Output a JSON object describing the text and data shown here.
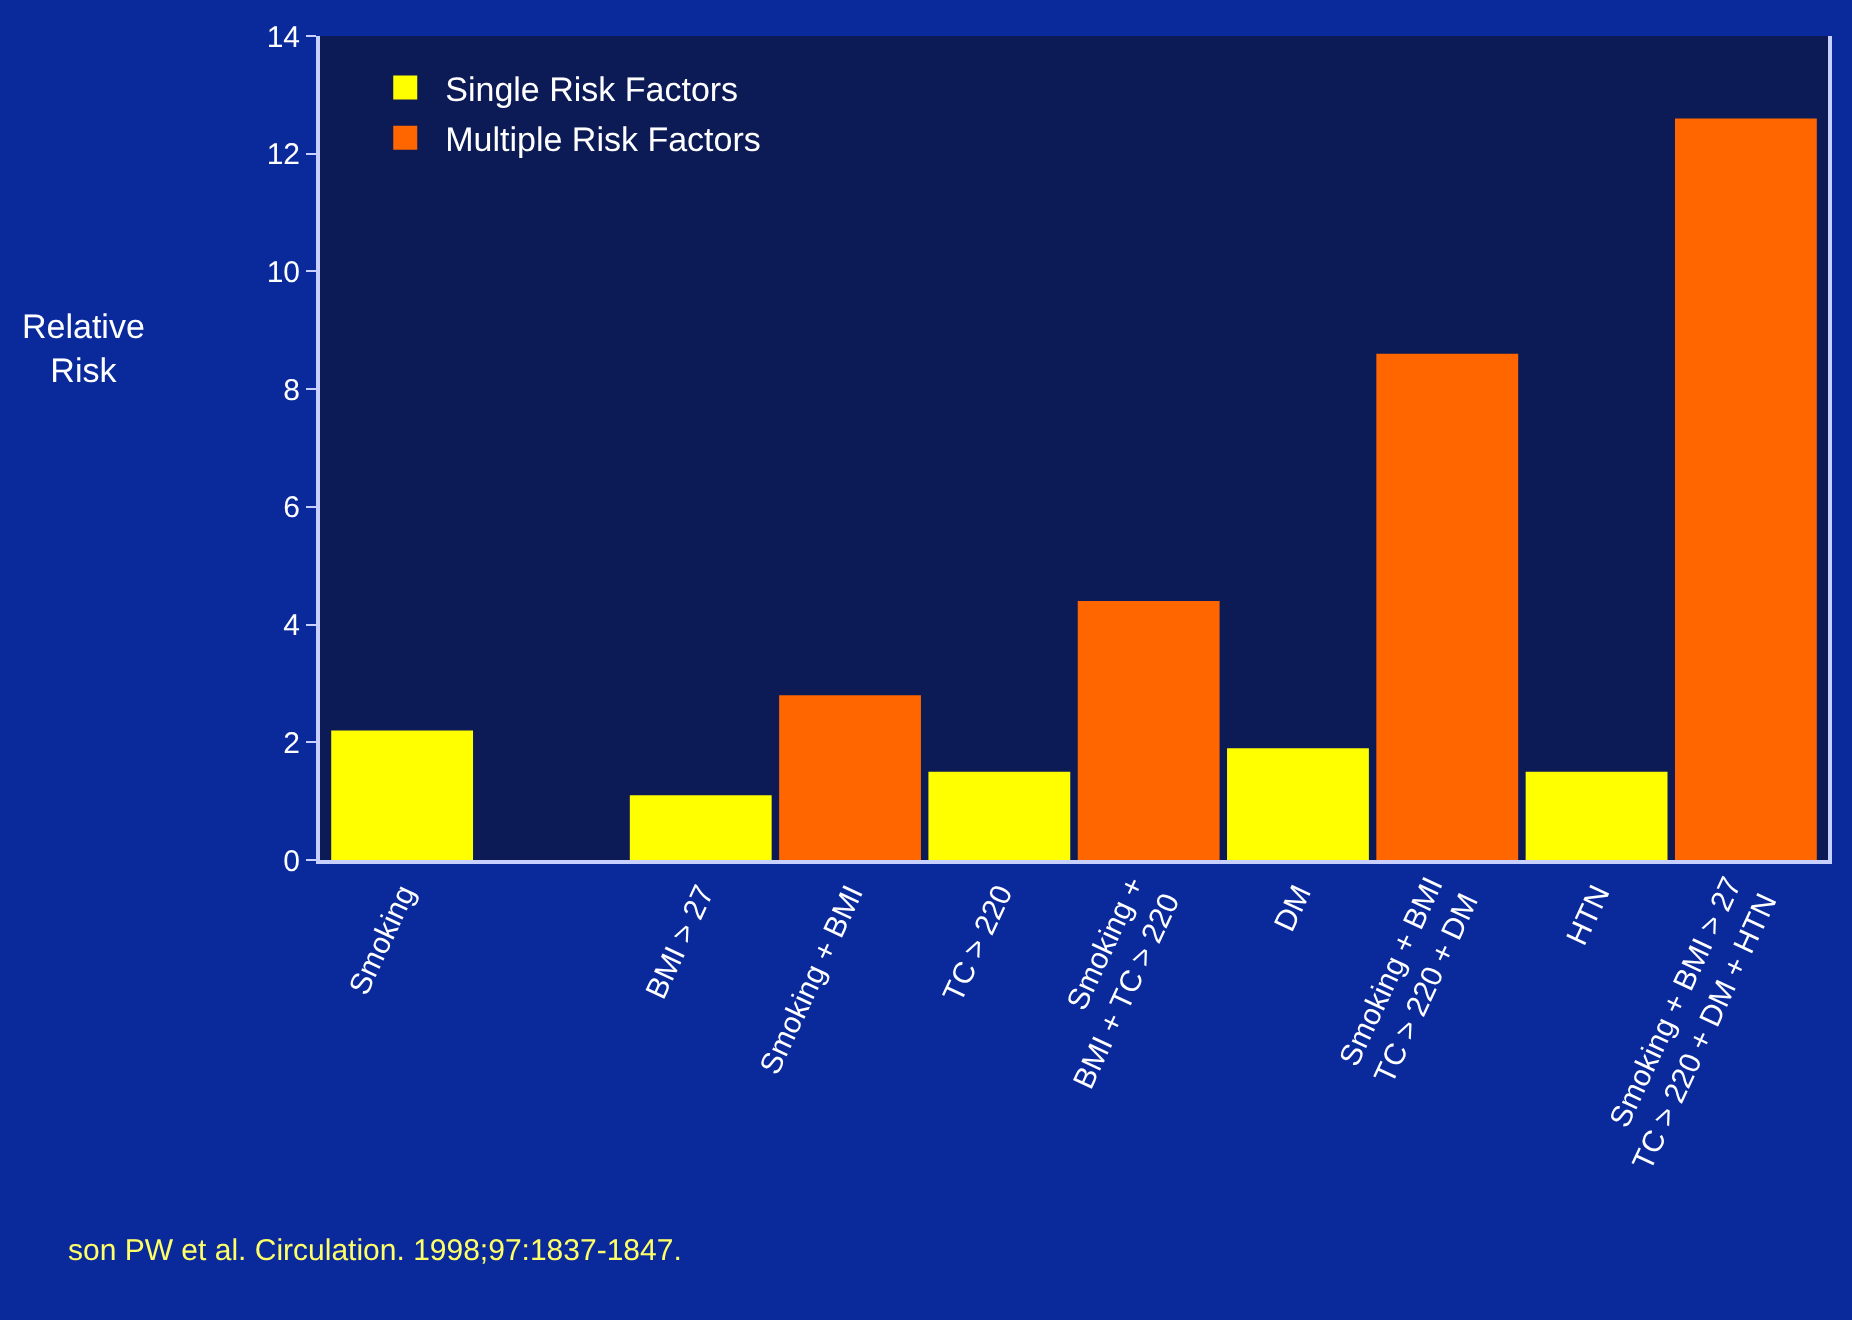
{
  "chart_data": {
    "type": "bar",
    "ylabel": "Relative Risk",
    "categories": [
      "Smoking",
      null,
      "BMI > 27",
      "Smoking + BMI",
      "TC > 220",
      "Smoking +\nBMI + TC > 220",
      "DM",
      "Smoking + BMI\nTC > 220 + DM",
      "HTN",
      "Smoking + BMI > 27\nTC > 220 + DM + HTN"
    ],
    "series": [
      {
        "name": "Single Risk Factors",
        "color": "#ffff00",
        "values": [
          2.2,
          null,
          1.1,
          null,
          1.5,
          null,
          1.9,
          null,
          1.5,
          null
        ]
      },
      {
        "name": "Multiple Risk Factors",
        "color": "#ff6600",
        "values": [
          null,
          null,
          null,
          2.8,
          null,
          4.4,
          null,
          8.6,
          null,
          12.6
        ]
      }
    ],
    "ylim": [
      0,
      14
    ],
    "yticks": [
      0,
      2,
      4,
      6,
      8,
      10,
      12,
      14
    ],
    "grid": false,
    "legend": "top left",
    "annotations": [
      "son PW et al. Circulation. 1998;97:1837-1847."
    ]
  }
}
